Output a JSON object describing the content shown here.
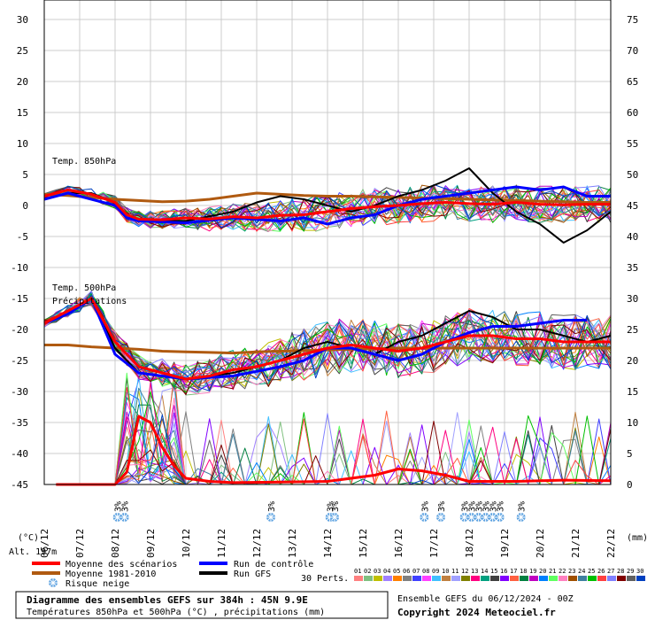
{
  "chart_data": {
    "type": "line",
    "left_axis": {
      "unit_label": "(°C)",
      "ticks": [
        30,
        25,
        20,
        15,
        10,
        5,
        0,
        -5,
        -10,
        -15,
        -20,
        -25,
        -30,
        -35,
        -40,
        -45
      ],
      "range": [
        -45,
        30
      ]
    },
    "right_axis": {
      "unit_label": "(mm)",
      "ticks": [
        75,
        70,
        65,
        60,
        55,
        50,
        45,
        40,
        35,
        30,
        25,
        20,
        15,
        10,
        5,
        0
      ],
      "range": [
        0,
        75
      ]
    },
    "dates": [
      "06/12",
      "07/12",
      "08/12",
      "09/12",
      "10/12",
      "11/12",
      "12/12",
      "13/12",
      "14/12",
      "15/12",
      "16/12",
      "17/12",
      "18/12",
      "19/12",
      "20/12",
      "21/12",
      "22/12"
    ],
    "panel_labels": {
      "t850": "Temp. 850hPa",
      "t500": "Temp. 500hPa",
      "precip": "Précipitations"
    },
    "altitude_label": "Alt. 197m",
    "snow_risk_label": "3%",
    "snow_risk_dates_index": [
      3.1,
      3.4,
      9.6,
      12.1,
      12.3,
      16.1,
      16.8,
      17.8,
      18.1,
      18.4,
      18.7,
      19.0,
      19.3,
      20.2
    ],
    "series": [
      {
        "name": "Moyenne des scénarios",
        "color": "#ff0000",
        "width": 3
      },
      {
        "name": "Moyenne 1981-2010",
        "color": "#b05a10",
        "width": 3
      },
      {
        "name": "Run de contrôle",
        "color": "#0000ff",
        "width": 3
      },
      {
        "name": "Run GFS",
        "color": "#000000",
        "width": 3
      }
    ],
    "t850_mean": [
      [
        0,
        1.5
      ],
      [
        1,
        2.5
      ],
      [
        2,
        1.8
      ],
      [
        3,
        0.5
      ],
      [
        3.5,
        -1.5
      ],
      [
        4,
        -2.2
      ],
      [
        5,
        -2.3
      ],
      [
        6,
        -2.0
      ],
      [
        7,
        -2.2
      ],
      [
        8,
        -1.8
      ],
      [
        9,
        -2.0
      ],
      [
        10,
        -1.6
      ],
      [
        11,
        -1.5
      ],
      [
        12,
        -1.0
      ],
      [
        13,
        -0.5
      ],
      [
        14,
        -0.2
      ],
      [
        15,
        0
      ],
      [
        16,
        0.3
      ],
      [
        17,
        0.5
      ],
      [
        18,
        0.3
      ],
      [
        19,
        0.2
      ],
      [
        20,
        0.5
      ],
      [
        21,
        0.2
      ],
      [
        22,
        0.1
      ],
      [
        23,
        0.2
      ],
      [
        24,
        0.2
      ]
    ],
    "t850_clim": [
      [
        0,
        1.8
      ],
      [
        1,
        1.6
      ],
      [
        2,
        1.3
      ],
      [
        3,
        1.0
      ],
      [
        4,
        0.8
      ],
      [
        5,
        0.6
      ],
      [
        6,
        0.7
      ],
      [
        7,
        1.0
      ],
      [
        8,
        1.5
      ],
      [
        9,
        2.0
      ],
      [
        10,
        1.8
      ],
      [
        11,
        1.6
      ],
      [
        12,
        1.5
      ],
      [
        13,
        1.5
      ],
      [
        14,
        1.4
      ],
      [
        15,
        1.3
      ],
      [
        16,
        1.2
      ],
      [
        17,
        1.1
      ],
      [
        18,
        1.0
      ],
      [
        19,
        0.9
      ],
      [
        20,
        0.8
      ],
      [
        21,
        0.7
      ],
      [
        22,
        0.6
      ],
      [
        23,
        0.5
      ],
      [
        24,
        0.5
      ]
    ],
    "t850_control": [
      [
        0,
        1.0
      ],
      [
        1,
        2.0
      ],
      [
        2,
        1.0
      ],
      [
        3,
        0
      ],
      [
        3.5,
        -2
      ],
      [
        4,
        -2.5
      ],
      [
        6,
        -2.8
      ],
      [
        8,
        -2.0
      ],
      [
        10,
        -2.5
      ],
      [
        11,
        -2.0
      ],
      [
        12,
        -3
      ],
      [
        13,
        -2
      ],
      [
        14,
        -1.5
      ],
      [
        15,
        0
      ],
      [
        16,
        1.0
      ],
      [
        17,
        1.5
      ],
      [
        18,
        2.0
      ],
      [
        19,
        2.5
      ],
      [
        20,
        3
      ],
      [
        21,
        2.5
      ],
      [
        22,
        3.0
      ],
      [
        23,
        1.5
      ],
      [
        24,
        1.5
      ]
    ],
    "t850_gfs": [
      [
        0,
        1.0
      ],
      [
        1,
        2.0
      ],
      [
        2,
        2.0
      ],
      [
        3,
        0.5
      ],
      [
        3.5,
        -1.5
      ],
      [
        4,
        -2.5
      ],
      [
        6,
        -2.5
      ],
      [
        8,
        -1
      ],
      [
        9,
        0.5
      ],
      [
        10,
        1.5
      ],
      [
        11,
        1.0
      ],
      [
        12,
        0
      ],
      [
        13,
        -1
      ],
      [
        14,
        0
      ],
      [
        15,
        1.5
      ],
      [
        16,
        2.5
      ],
      [
        17,
        4
      ],
      [
        18,
        6
      ],
      [
        19,
        2
      ],
      [
        20,
        -1
      ],
      [
        21,
        -3
      ],
      [
        22,
        -6
      ],
      [
        23,
        -4
      ],
      [
        24,
        -1
      ]
    ],
    "t500_mean": [
      [
        0,
        -19
      ],
      [
        1,
        -17
      ],
      [
        2,
        -15
      ],
      [
        3,
        -22
      ],
      [
        4,
        -26
      ],
      [
        5,
        -27
      ],
      [
        6,
        -28
      ],
      [
        7,
        -27.5
      ],
      [
        8,
        -26.5
      ],
      [
        9,
        -26
      ],
      [
        10,
        -25
      ],
      [
        11,
        -24
      ],
      [
        12,
        -23
      ],
      [
        13,
        -22.5
      ],
      [
        14,
        -23
      ],
      [
        15,
        -23.5
      ],
      [
        16,
        -23
      ],
      [
        17,
        -22
      ],
      [
        18,
        -21
      ],
      [
        19,
        -21
      ],
      [
        20,
        -21.5
      ],
      [
        21,
        -21.5
      ],
      [
        22,
        -22
      ],
      [
        23,
        -22
      ],
      [
        24,
        -22
      ]
    ],
    "t500_clim": [
      [
        0,
        -22.5
      ],
      [
        1,
        -22.5
      ],
      [
        2,
        -22.8
      ],
      [
        3,
        -23
      ],
      [
        4,
        -23.2
      ],
      [
        5,
        -23.5
      ],
      [
        6,
        -23.6
      ],
      [
        7,
        -23.7
      ],
      [
        8,
        -23.8
      ],
      [
        9,
        -23.6
      ],
      [
        10,
        -23.5
      ],
      [
        11,
        -23.4
      ],
      [
        12,
        -23.3
      ],
      [
        13,
        -23.2
      ],
      [
        14,
        -23.1
      ],
      [
        15,
        -23.0
      ],
      [
        16,
        -23.0
      ],
      [
        17,
        -23.0
      ],
      [
        18,
        -23.0
      ],
      [
        19,
        -23.0
      ],
      [
        20,
        -23.0
      ],
      [
        21,
        -23.0
      ],
      [
        22,
        -23.0
      ],
      [
        23,
        -23.0
      ],
      [
        24,
        -23.0
      ]
    ],
    "t500_control": [
      [
        0,
        -19
      ],
      [
        1,
        -17.5
      ],
      [
        2,
        -15
      ],
      [
        3,
        -24
      ],
      [
        4,
        -27
      ],
      [
        6,
        -28
      ],
      [
        8,
        -27.5
      ],
      [
        10,
        -26
      ],
      [
        11,
        -25
      ],
      [
        12,
        -23
      ],
      [
        13,
        -23
      ],
      [
        14,
        -24
      ],
      [
        15,
        -25
      ],
      [
        16,
        -24
      ],
      [
        17,
        -22
      ],
      [
        18,
        -20.5
      ],
      [
        19,
        -19.5
      ],
      [
        20,
        -19.5
      ],
      [
        21,
        -19
      ],
      [
        22,
        -18.5
      ],
      [
        23,
        -18.5
      ]
    ],
    "t500_gfs": [
      [
        0,
        -19
      ],
      [
        1,
        -17
      ],
      [
        2,
        -15
      ],
      [
        3,
        -23
      ],
      [
        4,
        -27
      ],
      [
        6,
        -28
      ],
      [
        8,
        -27
      ],
      [
        10,
        -25
      ],
      [
        11,
        -23
      ],
      [
        12,
        -22
      ],
      [
        13,
        -23
      ],
      [
        14,
        -24
      ],
      [
        15,
        -22
      ],
      [
        16,
        -21
      ],
      [
        17,
        -19
      ],
      [
        18,
        -17
      ],
      [
        19,
        -18
      ],
      [
        20,
        -20
      ],
      [
        21,
        -20
      ],
      [
        22,
        -21
      ],
      [
        23,
        -22
      ],
      [
        24,
        -21
      ]
    ],
    "precip_mean": [
      [
        0,
        0
      ],
      [
        3,
        0
      ],
      [
        3.5,
        2
      ],
      [
        4,
        11
      ],
      [
        4.5,
        10
      ],
      [
        5,
        6
      ],
      [
        5.5,
        3
      ],
      [
        6,
        1
      ],
      [
        7,
        0.5
      ],
      [
        8,
        0.3
      ],
      [
        10,
        0.4
      ],
      [
        12,
        0.5
      ],
      [
        14,
        1.5
      ],
      [
        15,
        2.5
      ],
      [
        16,
        2.2
      ],
      [
        17,
        1.5
      ],
      [
        18,
        0.5
      ],
      [
        20,
        0.5
      ],
      [
        22,
        0.7
      ],
      [
        24,
        0.6
      ]
    ],
    "num_perturbations": 30,
    "perturbations_label": "30 Perts.",
    "member_ids": [
      "01",
      "02",
      "03",
      "04",
      "05",
      "06",
      "07",
      "08",
      "09",
      "10",
      "11",
      "12",
      "13",
      "14",
      "15",
      "16",
      "17",
      "18",
      "19",
      "20",
      "21",
      "22",
      "23",
      "24",
      "25",
      "26",
      "27",
      "28",
      "29",
      "30"
    ],
    "member_colors": [
      "#ff8080",
      "#80c080",
      "#c0c000",
      "#a080ff",
      "#ff8000",
      "#808080",
      "#4040ff",
      "#ff40ff",
      "#40c0ff",
      "#c08040",
      "#a0a0ff",
      "#808000",
      "#ff0080",
      "#00a080",
      "#404040",
      "#8000ff",
      "#ff6040",
      "#008040",
      "#c000c0",
      "#0080ff",
      "#60ff60",
      "#ff80c0",
      "#a05000",
      "#4080a0",
      "#00c000",
      "#ff4040",
      "#8080ff",
      "#800000",
      "#606060",
      "#0040c0"
    ]
  },
  "legend": {
    "mean_label": "Moyenne des scénarios",
    "clim_label": "Moyenne 1981-2010",
    "snow_label": "Risque neige",
    "control_label": "Run de contrôle",
    "gfs_label": "Run GFS"
  },
  "info_box": {
    "title": "Diagramme des ensembles GEFS sur 384h : 45N 9.9E",
    "subtitle": "Températures 850hPa et 500hPa (°C) , précipitations (mm)"
  },
  "run_info": "Ensemble GEFS du 06/12/2024 - 00Z",
  "copyright": "Copyright 2024 Meteociel.fr",
  "colors": {
    "mean": "#ff0000",
    "clim": "#b05a10",
    "control": "#0000ff",
    "gfs": "#000000",
    "snow_icon": "#5aa0e0",
    "grid": "#cccccc"
  }
}
